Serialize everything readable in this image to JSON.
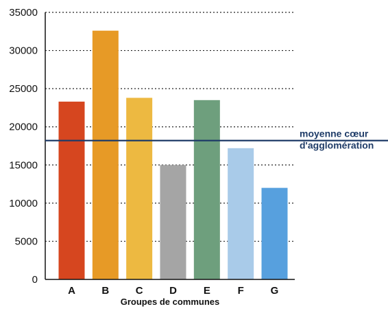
{
  "chart_data": {
    "type": "bar",
    "categories": [
      "A",
      "B",
      "C",
      "D",
      "E",
      "F",
      "G"
    ],
    "values": [
      23300,
      32600,
      23800,
      15000,
      23500,
      17200,
      12000
    ],
    "bar_colors": [
      "#d6461f",
      "#e79a26",
      "#edb941",
      "#a5a5a5",
      "#6e9f7d",
      "#a9cbe9",
      "#57a0de"
    ],
    "title": "",
    "xlabel": "Groupes de communes",
    "ylabel": "",
    "ylim": [
      0,
      35000
    ],
    "yticks": [
      0,
      5000,
      10000,
      15000,
      20000,
      25000,
      30000,
      35000
    ],
    "grid": true,
    "grid_style": "dotted",
    "reference_line": {
      "value": 18200,
      "label_lines": [
        "moyenne cœur",
        "d'agglomération"
      ],
      "color": "#1f3c68"
    }
  }
}
